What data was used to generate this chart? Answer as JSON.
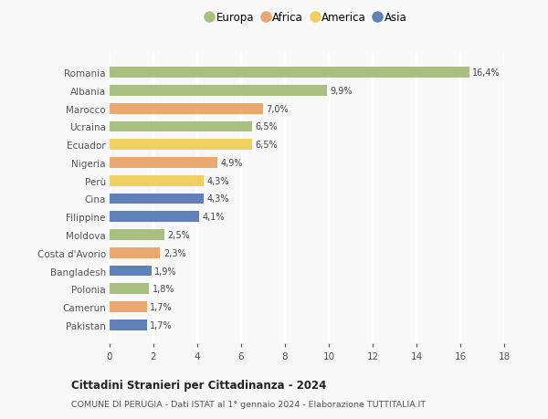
{
  "countries": [
    "Romania",
    "Albania",
    "Marocco",
    "Ucraina",
    "Ecuador",
    "Nigeria",
    "Perù",
    "Cina",
    "Filippine",
    "Moldova",
    "Costa d'Avorio",
    "Bangladesh",
    "Polonia",
    "Camerun",
    "Pakistan"
  ],
  "values": [
    16.4,
    9.9,
    7.0,
    6.5,
    6.5,
    4.9,
    4.3,
    4.3,
    4.1,
    2.5,
    2.3,
    1.9,
    1.8,
    1.7,
    1.7
  ],
  "labels": [
    "16,4%",
    "9,9%",
    "7,0%",
    "6,5%",
    "6,5%",
    "4,9%",
    "4,3%",
    "4,3%",
    "4,1%",
    "2,5%",
    "2,3%",
    "1,9%",
    "1,8%",
    "1,7%",
    "1,7%"
  ],
  "continents": [
    "Europa",
    "Europa",
    "Africa",
    "Europa",
    "America",
    "Africa",
    "America",
    "Asia",
    "Asia",
    "Europa",
    "Africa",
    "Asia",
    "Europa",
    "Africa",
    "Asia"
  ],
  "colors": {
    "Europa": "#a8c080",
    "Africa": "#e8a870",
    "America": "#f0d060",
    "Asia": "#6080b8"
  },
  "legend_order": [
    "Europa",
    "Africa",
    "America",
    "Asia"
  ],
  "title": "Cittadini Stranieri per Cittadinanza - 2024",
  "subtitle": "COMUNE DI PERUGIA - Dati ISTAT al 1° gennaio 2024 - Elaborazione TUTTITALIA.IT",
  "xlim": [
    0,
    18
  ],
  "xticks": [
    0,
    2,
    4,
    6,
    8,
    10,
    12,
    14,
    16,
    18
  ],
  "bg_color": "#f8f8f8",
  "grid_color": "#ffffff",
  "bar_height": 0.6
}
